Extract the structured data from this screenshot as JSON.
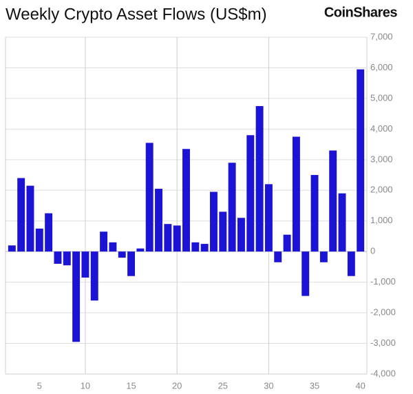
{
  "chart_data": {
    "type": "bar",
    "title": "Weekly Crypto Asset Flows (US$m)",
    "brand": "CoinShares",
    "x": [
      2,
      3,
      4,
      5,
      6,
      7,
      8,
      9,
      10,
      11,
      12,
      13,
      14,
      15,
      16,
      17,
      18,
      19,
      20,
      21,
      22,
      23,
      24,
      25,
      26,
      27,
      28,
      29,
      30,
      31,
      32,
      33,
      34,
      35,
      36,
      37,
      38,
      39,
      40
    ],
    "values": [
      200,
      2400,
      2150,
      750,
      1250,
      -400,
      -450,
      -2950,
      -850,
      -1600,
      650,
      300,
      -200,
      -800,
      100,
      3550,
      2050,
      900,
      850,
      3350,
      300,
      250,
      1950,
      1300,
      2900,
      1100,
      3800,
      4750,
      2200,
      -350,
      550,
      3750,
      -1450,
      2500,
      -350,
      3300,
      1900,
      -800,
      5950
    ],
    "color": "#1c14d4",
    "xlim": [
      1.3,
      40.7
    ],
    "xticks": [
      5,
      10,
      15,
      20,
      25,
      30,
      35,
      40
    ],
    "ylim": [
      -4000,
      7000
    ],
    "yticks": [
      {
        "value": -4000,
        "label": "-4,000"
      },
      {
        "value": -3000,
        "label": "-3,000"
      },
      {
        "value": -2000,
        "label": "-2,000"
      },
      {
        "value": -1000,
        "label": "-1,000"
      },
      0,
      {
        "value": 1000,
        "label": "1,000"
      },
      {
        "value": 2000,
        "label": "2,000"
      },
      {
        "value": 3000,
        "label": "3,000"
      },
      {
        "value": 4000,
        "label": "4,000"
      },
      {
        "value": 5000,
        "label": "5,000"
      },
      {
        "value": 6000,
        "label": "6,000"
      },
      {
        "value": 7000,
        "label": "7,000"
      }
    ],
    "grid": true
  }
}
